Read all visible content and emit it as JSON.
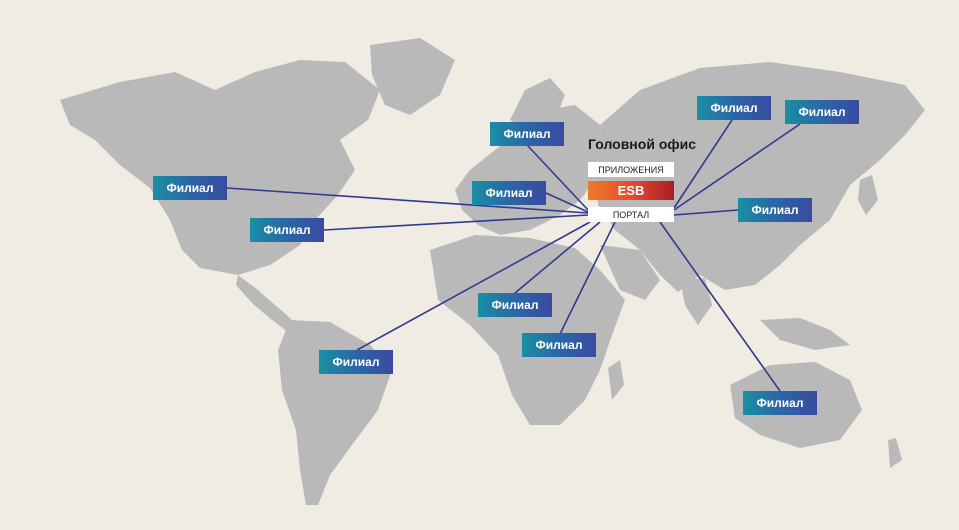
{
  "headquarters": {
    "title": "Головной офис",
    "applications_label": "ПРИЛОЖЕНИЯ",
    "esb_label": "ESB",
    "portal_label": "ПОРТАЛ"
  },
  "branches": [
    {
      "id": "canada",
      "label": "Филиал"
    },
    {
      "id": "usa",
      "label": "Филиал"
    },
    {
      "id": "north-europe",
      "label": "Филиал"
    },
    {
      "id": "west-europe",
      "label": "Филиал"
    },
    {
      "id": "siberia-west",
      "label": "Филиал"
    },
    {
      "id": "siberia-east",
      "label": "Филиал"
    },
    {
      "id": "china",
      "label": "Филиал"
    },
    {
      "id": "west-africa",
      "label": "Филиал"
    },
    {
      "id": "east-africa",
      "label": "Филиал"
    },
    {
      "id": "south-america",
      "label": "Филиал"
    },
    {
      "id": "australia",
      "label": "Филиал"
    }
  ],
  "colors": {
    "background": "#f0ebe3",
    "land": "#b9b9b9",
    "link": "#2f3b8f",
    "branch_from": "#1a8fa3",
    "branch_to": "#3a4aa0",
    "esb_from": "#ef7a2b",
    "esb_to": "#a71d26"
  }
}
